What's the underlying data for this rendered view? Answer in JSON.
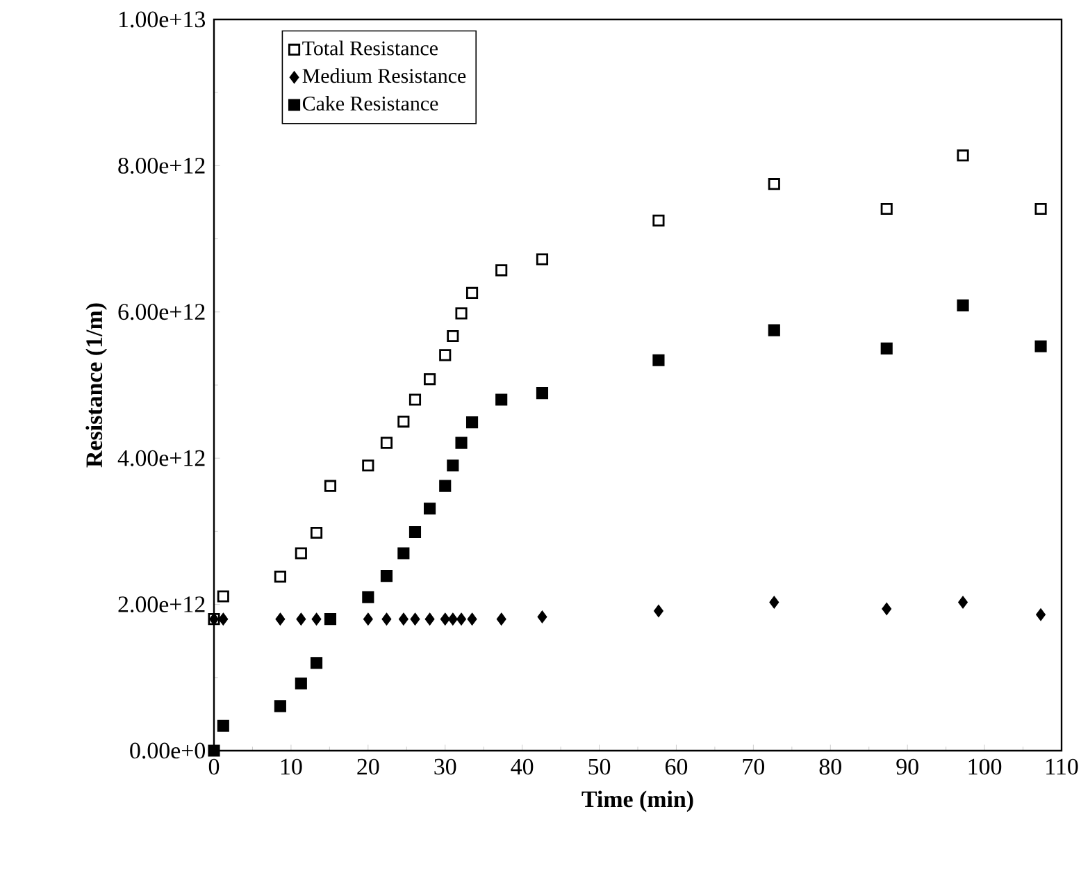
{
  "chart_data": {
    "type": "scatter",
    "xlabel": "Time  (min)",
    "ylabel": "Resistance  (1/m)",
    "x": [
      0,
      1.2,
      8.6,
      11.3,
      13.3,
      15.1,
      20,
      22.4,
      24.6,
      26.1,
      28,
      30,
      31,
      32.1,
      33.5,
      37.3,
      42.6,
      57.7,
      72.7,
      87.3,
      97.2,
      107.3
    ],
    "series": [
      {
        "name": "Total Resistance",
        "color": "#000000",
        "marker": "square",
        "values": [
          1800000000000.0,
          2110000000000.0,
          2380000000000.0,
          2700000000000.0,
          2980000000000.0,
          3620000000000.0,
          3900000000000.0,
          4210000000000.0,
          4500000000000.0,
          4800000000000.0,
          5080000000000.0,
          5410000000000.0,
          5670000000000.0,
          5980000000000.0,
          6260000000000.0,
          6570000000000.0,
          6720000000000.0,
          7250000000000.0,
          7750000000000.0,
          7410000000000.0,
          8140000000000.0,
          7410000000000.0
        ]
      },
      {
        "name": "Medium Resistance",
        "color": "#000000",
        "marker": "diamond",
        "values": [
          1800000000000.0,
          1800000000000.0,
          1800000000000.0,
          1800000000000.0,
          1800000000000.0,
          null,
          1800000000000.0,
          1800000000000.0,
          1800000000000.0,
          1800000000000.0,
          1800000000000.0,
          1800000000000.0,
          1800000000000.0,
          1800000000000.0,
          1800000000000.0,
          1800000000000.0,
          1830000000000.0,
          1910000000000.0,
          2030000000000.0,
          1940000000000.0,
          2030000000000.0,
          1860000000000.0
        ]
      },
      {
        "name": "Cake Resistance",
        "color": "#000000",
        "marker": "square",
        "values": [
          0,
          340000000000.0,
          610000000000.0,
          920000000000.0,
          1200000000000.0,
          1800000000000.0,
          2100000000000.0,
          2390000000000.0,
          2700000000000.0,
          2990000000000.0,
          3310000000000.0,
          3620000000000.0,
          3900000000000.0,
          4210000000000.0,
          4490000000000.0,
          4800000000000.0,
          4890000000000.0,
          5340000000000.0,
          5750000000000.0,
          5500000000000.0,
          6090000000000.0,
          5530000000000.0
        ]
      }
    ],
    "xlim": [
      0,
      110
    ],
    "xticks": [
      0,
      10,
      20,
      30,
      40,
      50,
      60,
      70,
      80,
      90,
      100,
      110
    ],
    "ylim": [
      0,
      10000000000000.0
    ],
    "yticks": [
      {
        "value": 0,
        "label": "0.00e+0"
      },
      {
        "value": 2000000000000.0,
        "label": "2.00e+12"
      },
      {
        "value": 4000000000000.0,
        "label": "4.00e+12"
      },
      {
        "value": 6000000000000.0,
        "label": "6.00e+12"
      },
      {
        "value": 8000000000000.0,
        "label": "8.00e+12"
      },
      {
        "value": 10000000000000.0,
        "label": "1.00e+13"
      }
    ],
    "grid": false,
    "legend": "top left"
  }
}
